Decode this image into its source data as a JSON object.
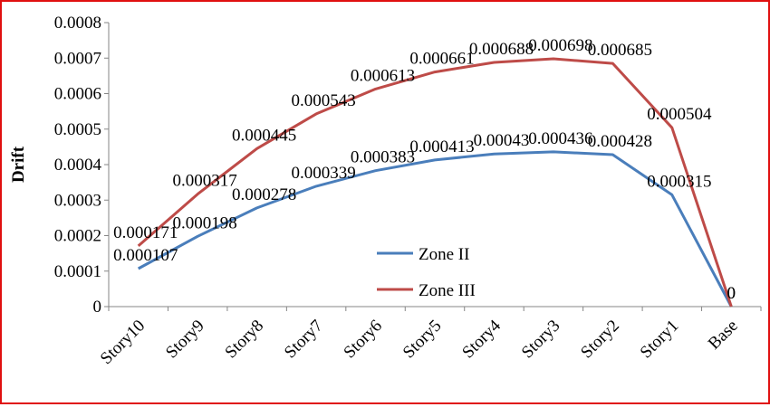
{
  "chart_data": {
    "type": "line",
    "title": "",
    "xlabel": "",
    "ylabel": "Drift",
    "ylim": [
      0,
      0.0008
    ],
    "y_ticks": [
      "0",
      "0.0001",
      "0.0002",
      "0.0003",
      "0.0004",
      "0.0005",
      "0.0006",
      "0.0007",
      "0.0008"
    ],
    "grid": false,
    "legend_position": "bottom-center",
    "categories": [
      "Story10",
      "Story9",
      "Story8",
      "Story7",
      "Story6",
      "Story5",
      "Story4",
      "Story3",
      "Story2",
      "Story1",
      "Base"
    ],
    "series": [
      {
        "name": "Zone II",
        "color": "#4a7ebb",
        "values": [
          0.000107,
          0.000198,
          0.000278,
          0.000339,
          0.000383,
          0.000413,
          0.00043,
          0.000436,
          0.000428,
          0.000315,
          0
        ],
        "labels": [
          "0.000107",
          "0.000198",
          "0.000278",
          "0.000339",
          "0.000383",
          "0.000413",
          "0.00043",
          "0.000436",
          "0.000428",
          "0.000315",
          "0"
        ]
      },
      {
        "name": "Zone III",
        "color": "#be4b48",
        "values": [
          0.000171,
          0.000317,
          0.000445,
          0.000543,
          0.000613,
          0.000661,
          0.000688,
          0.000698,
          0.000685,
          0.000504,
          0
        ],
        "labels": [
          "0.000171",
          "0.000317",
          "0.000445",
          "0.000543",
          "0.000613",
          "0.000661",
          "0.000688",
          "0.000698",
          "0.000685",
          "0.000504",
          "0"
        ]
      }
    ]
  }
}
